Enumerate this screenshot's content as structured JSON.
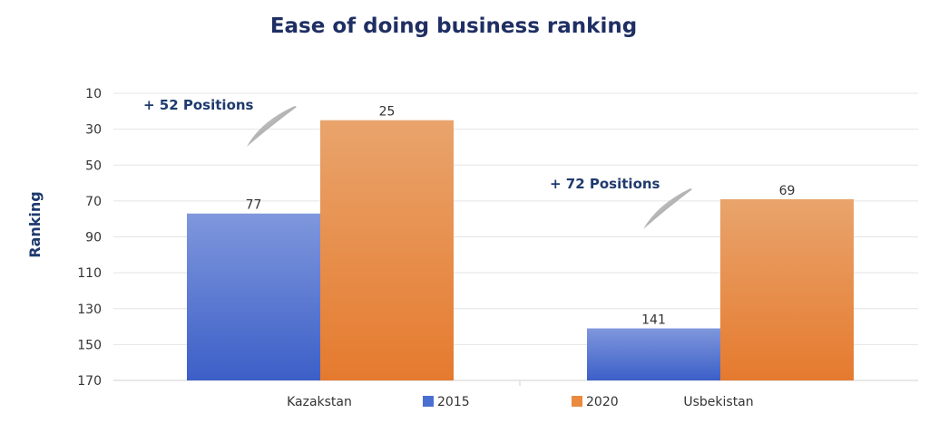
{
  "chart_data": {
    "type": "bar",
    "title": "Ease of doing business ranking",
    "xlabel": "",
    "ylabel": "Ranking",
    "ylim": [
      10,
      170
    ],
    "y_inverted": true,
    "yticks": [
      10,
      30,
      50,
      70,
      90,
      110,
      130,
      150,
      170
    ],
    "grid": true,
    "legend_position": "bottom",
    "categories": [
      "Kazakstan",
      "Usbekistan"
    ],
    "series": [
      {
        "name": "2015",
        "values": [
          77,
          141
        ],
        "color": "#4a6fd0"
      },
      {
        "name": "2020",
        "values": [
          25,
          69
        ],
        "color": "#ea8a3e"
      }
    ],
    "annotations": [
      "+ 52 Positions",
      "+ 72 Positions"
    ]
  }
}
